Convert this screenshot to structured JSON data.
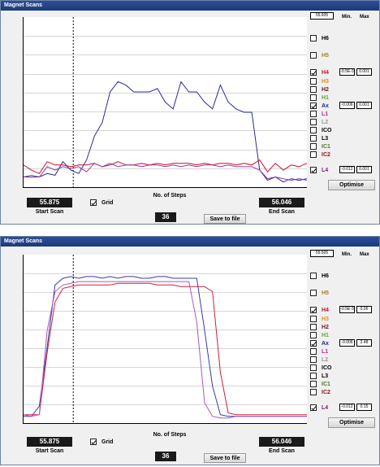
{
  "panels": [
    {
      "title": "Magnet Scans",
      "top_value": "55.905",
      "min_label": "Min.",
      "max_label": "Max",
      "channels": [
        {
          "name": "H6",
          "color": "#000000",
          "checked": false
        },
        {
          "name": "H5",
          "color": "#a0822d",
          "checked": false
        },
        {
          "name": "H4",
          "color": "#c8102e",
          "checked": true,
          "min": "-0.5E-3",
          "max": "0.001"
        },
        {
          "name": "H3",
          "color": "#e08a1e",
          "checked": false
        },
        {
          "name": "H2",
          "color": "#6a1a1a",
          "checked": false
        },
        {
          "name": "H1",
          "color": "#5fa83a",
          "checked": false
        },
        {
          "name": "Ax",
          "color": "#1c2a8a",
          "checked": true,
          "min": "-0.006",
          "max": "0.001"
        },
        {
          "name": "L1",
          "color": "#b03088",
          "checked": false
        },
        {
          "name": "L2",
          "color": "#9a9a9a",
          "checked": false
        },
        {
          "name": "ICO",
          "color": "#000000",
          "checked": false
        },
        {
          "name": "L3",
          "color": "#000000",
          "checked": false
        },
        {
          "name": "IC1",
          "color": "#4a7a2a",
          "checked": false
        },
        {
          "name": "IC2",
          "color": "#8a1a1a",
          "checked": false
        },
        {
          "name": "L4",
          "color": "#7a1a7a",
          "checked": true,
          "min": "-0.012",
          "max": "0.001"
        }
      ],
      "optimise_label": "Optimise",
      "start_scan": {
        "value": "55.875",
        "label": "Start Scan"
      },
      "end_scan": {
        "value": "56.046",
        "label": "End Scan"
      },
      "grid_label": "Grid",
      "grid_checked": true,
      "steps_label": "No. of Steps",
      "steps_value": "36",
      "save_label": "Save to file"
    },
    {
      "title": "Magnet Scans",
      "top_value": "55.905",
      "min_label": "Min.",
      "max_label": "Max",
      "channels": [
        {
          "name": "H6",
          "color": "#000000",
          "checked": false
        },
        {
          "name": "H5",
          "color": "#a0822d",
          "checked": false
        },
        {
          "name": "H4",
          "color": "#c8102e",
          "checked": true,
          "min": "-0.5E-3",
          "max": "0.06"
        },
        {
          "name": "H3",
          "color": "#e08a1e",
          "checked": false
        },
        {
          "name": "H2",
          "color": "#6a1a1a",
          "checked": false
        },
        {
          "name": "H1",
          "color": "#5fa83a",
          "checked": false
        },
        {
          "name": "Ax",
          "color": "#1c2a8a",
          "checked": true,
          "min": "-0.006",
          "max": "2.48"
        },
        {
          "name": "L1",
          "color": "#b03088",
          "checked": false
        },
        {
          "name": "L2",
          "color": "#9a9a9a",
          "checked": false
        },
        {
          "name": "ICO",
          "color": "#000000",
          "checked": false
        },
        {
          "name": "L3",
          "color": "#000000",
          "checked": false
        },
        {
          "name": "IC1",
          "color": "#4a7a2a",
          "checked": false
        },
        {
          "name": "IC2",
          "color": "#8a1a1a",
          "checked": false
        },
        {
          "name": "L4",
          "color": "#7a1a7a",
          "checked": true,
          "min": "-0.012",
          "max": "0.15"
        }
      ],
      "optimise_label": "Optimise",
      "start_scan": {
        "value": "55.875",
        "label": "Start Scan"
      },
      "end_scan": {
        "value": "56.046",
        "label": "End Scan"
      },
      "grid_label": "Grid",
      "grid_checked": true,
      "steps_label": "No. of Steps",
      "steps_value": "36",
      "save_label": "Save to file"
    }
  ],
  "chart_data": [
    {
      "type": "line",
      "x_range": [
        55.875,
        56.046
      ],
      "y_range": [
        0,
        1
      ],
      "grid": true,
      "marker_x": 55.905,
      "series": [
        {
          "color": "#2a2a9a",
          "values": [
            0.06,
            0.06,
            0.06,
            0.08,
            0.07,
            0.15,
            0.1,
            0.08,
            0.16,
            0.3,
            0.38,
            0.56,
            0.62,
            0.6,
            0.56,
            0.56,
            0.56,
            0.58,
            0.5,
            0.46,
            0.62,
            0.56,
            0.56,
            0.5,
            0.46,
            0.6,
            0.5,
            0.46,
            0.44,
            0.44,
            0.1,
            0.04,
            0.06,
            0.03,
            0.05,
            0.04,
            0.05
          ]
        },
        {
          "color": "#c8102e",
          "values": [
            0.13,
            0.1,
            0.08,
            0.15,
            0.13,
            0.13,
            0.12,
            0.13,
            0.13,
            0.14,
            0.12,
            0.13,
            0.15,
            0.13,
            0.13,
            0.14,
            0.13,
            0.14,
            0.13,
            0.14,
            0.14,
            0.14,
            0.13,
            0.14,
            0.13,
            0.14,
            0.14,
            0.13,
            0.14,
            0.13,
            0.16,
            0.09,
            0.14,
            0.1,
            0.13,
            0.12,
            0.14
          ]
        },
        {
          "color": "#9a3a9a",
          "values": [
            0.06,
            0.07,
            0.06,
            0.12,
            0.1,
            0.12,
            0.11,
            0.12,
            0.09,
            0.14,
            0.12,
            0.14,
            0.12,
            0.13,
            0.13,
            0.12,
            0.13,
            0.13,
            0.12,
            0.13,
            0.12,
            0.13,
            0.12,
            0.13,
            0.13,
            0.12,
            0.13,
            0.12,
            0.12,
            0.12,
            0.1,
            0.05,
            0.06,
            0.05,
            0.04,
            0.05,
            0.04
          ]
        }
      ]
    },
    {
      "type": "line",
      "x_range": [
        55.875,
        56.046
      ],
      "y_range": [
        0,
        1
      ],
      "grid": true,
      "marker_x": 55.905,
      "series": [
        {
          "color": "#3a3aa8",
          "values": [
            0.04,
            0.04,
            0.1,
            0.45,
            0.82,
            0.86,
            0.87,
            0.86,
            0.87,
            0.87,
            0.86,
            0.87,
            0.86,
            0.87,
            0.87,
            0.86,
            0.86,
            0.87,
            0.87,
            0.86,
            0.86,
            0.86,
            0.86,
            0.55,
            0.22,
            0.05,
            0.04,
            0.04,
            0.04,
            0.04,
            0.04,
            0.04,
            0.04,
            0.04,
            0.04,
            0.04,
            0.04
          ]
        },
        {
          "color": "#d0203a",
          "values": [
            0.05,
            0.05,
            0.05,
            0.42,
            0.72,
            0.8,
            0.81,
            0.82,
            0.82,
            0.82,
            0.82,
            0.82,
            0.83,
            0.83,
            0.83,
            0.83,
            0.83,
            0.82,
            0.82,
            0.82,
            0.81,
            0.81,
            0.81,
            0.81,
            0.78,
            0.3,
            0.06,
            0.05,
            0.05,
            0.05,
            0.05,
            0.05,
            0.05,
            0.05,
            0.05,
            0.05,
            0.05
          ]
        },
        {
          "color": "#a85ab8",
          "values": [
            0.05,
            0.04,
            0.05,
            0.55,
            0.78,
            0.82,
            0.83,
            0.84,
            0.84,
            0.84,
            0.84,
            0.84,
            0.84,
            0.84,
            0.84,
            0.84,
            0.84,
            0.84,
            0.84,
            0.84,
            0.84,
            0.84,
            0.6,
            0.12,
            0.04,
            0.03,
            0.03,
            0.04,
            0.04,
            0.04,
            0.04,
            0.04,
            0.04,
            0.04,
            0.04,
            0.04,
            0.04
          ]
        }
      ]
    }
  ]
}
